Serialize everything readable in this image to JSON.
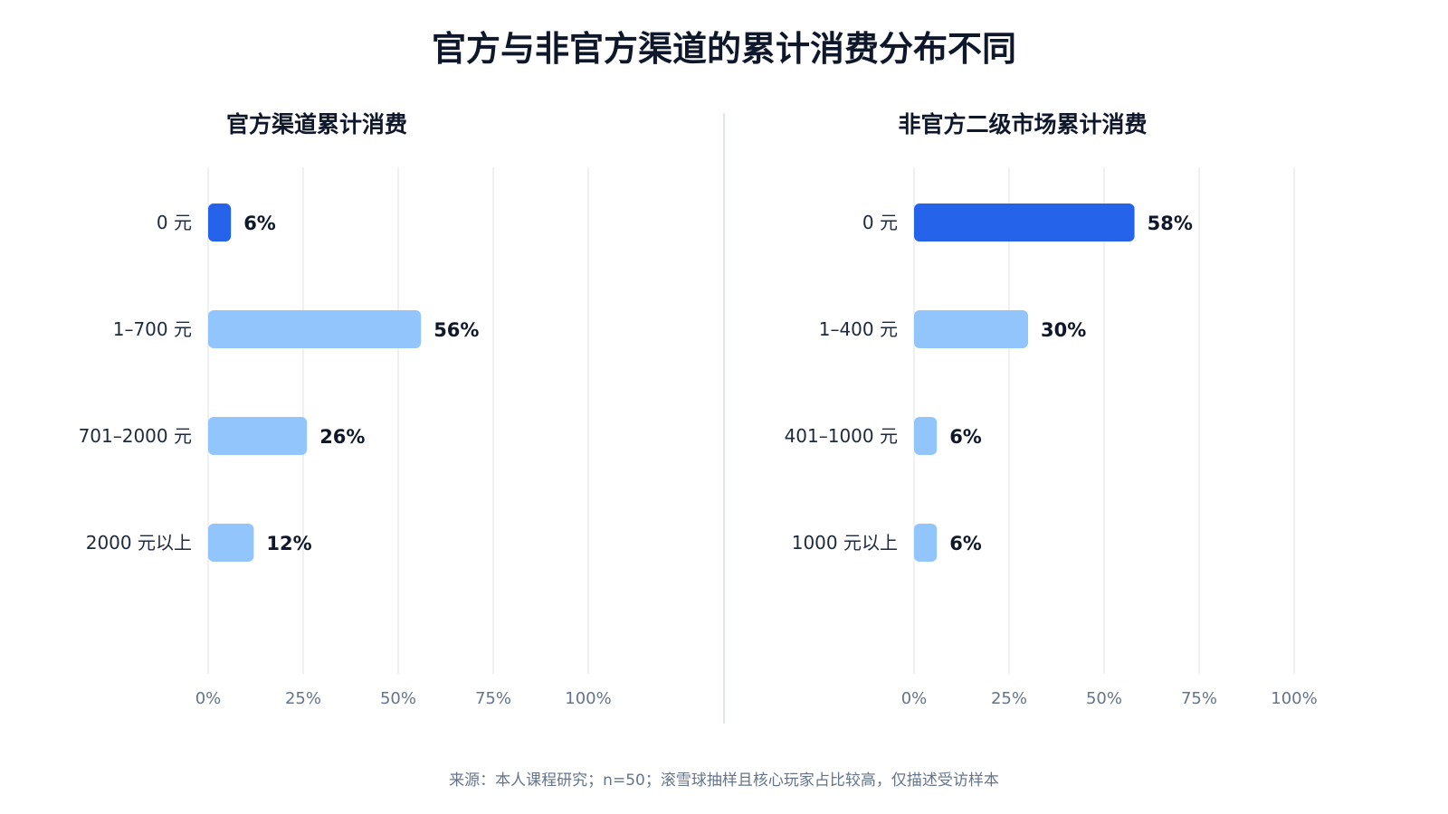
{
  "title": "官方与非官方渠道的累计消费分布不同",
  "footnote": "来源：本人课程研究；n=50；滚雪球抽样且核心玩家占比较高，仅描述受访样本",
  "colors": {
    "highlight": "#2563eb",
    "bar": "#93c5fd",
    "grid": "#e5e7eb",
    "divider": "#d9dde3"
  },
  "chart_data": [
    {
      "type": "bar",
      "orientation": "horizontal",
      "title": "官方渠道累计消费",
      "categories": [
        "0 元",
        "1–700 元",
        "701–2000 元",
        "2000 元以上"
      ],
      "values": [
        6,
        56,
        26,
        12
      ],
      "value_labels": [
        "6%",
        "56%",
        "26%",
        "12%"
      ],
      "highlight_index": 0,
      "xlim": [
        0,
        100
      ],
      "xticks": [
        0,
        25,
        50,
        75,
        100
      ],
      "xtick_labels": [
        "0%",
        "25%",
        "50%",
        "75%",
        "100%"
      ],
      "grid": true
    },
    {
      "type": "bar",
      "orientation": "horizontal",
      "title": "非官方二级市场累计消费",
      "categories": [
        "0 元",
        "1–400 元",
        "401–1000 元",
        "1000 元以上"
      ],
      "values": [
        58,
        30,
        6,
        6
      ],
      "value_labels": [
        "58%",
        "30%",
        "6%",
        "6%"
      ],
      "highlight_index": 0,
      "xlim": [
        0,
        100
      ],
      "xticks": [
        0,
        25,
        50,
        75,
        100
      ],
      "xtick_labels": [
        "0%",
        "25%",
        "50%",
        "75%",
        "100%"
      ],
      "grid": true
    }
  ]
}
